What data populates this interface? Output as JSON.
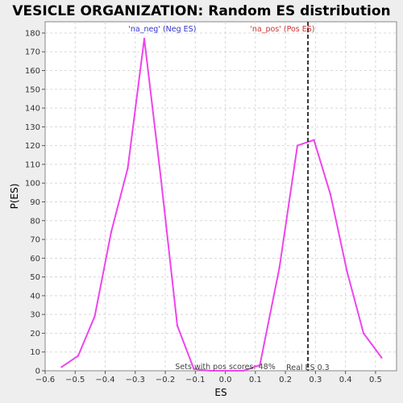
{
  "chart_data": {
    "type": "line",
    "title": "VESICLE ORGANIZATION: Random ES distribution",
    "xlabel": "ES",
    "ylabel": "P(ES)",
    "xlim": [
      -0.6,
      0.57
    ],
    "ylim": [
      0,
      186
    ],
    "xticks": [
      -0.6,
      -0.5,
      -0.4,
      -0.3,
      -0.2,
      -0.1,
      0.0,
      0.1,
      0.2,
      0.3,
      0.4,
      0.5
    ],
    "xtick_labels": [
      "−0.6",
      "−0.5",
      "−0.4",
      "−0.3",
      "−0.2",
      "−0.1",
      "0.0",
      "0.1",
      "0.2",
      "0.3",
      "0.4",
      "0.5"
    ],
    "yticks": [
      0,
      10,
      20,
      30,
      40,
      50,
      60,
      70,
      80,
      90,
      100,
      110,
      120,
      130,
      140,
      150,
      160,
      170,
      180
    ],
    "grid": true,
    "series": [
      {
        "color": "#ee44ee",
        "x": [
          -0.545,
          -0.49,
          -0.435,
          -0.38,
          -0.325,
          -0.27,
          -0.215,
          -0.16,
          -0.105,
          -0.05,
          0.005,
          0.06,
          0.115,
          0.18,
          0.24,
          0.295,
          0.35,
          0.405,
          0.46,
          0.52
        ],
        "y": [
          2,
          8,
          29,
          74,
          108,
          177,
          103,
          24,
          1,
          0,
          0,
          0,
          3,
          55,
          120,
          123,
          94,
          53,
          20,
          7
        ]
      }
    ],
    "vline": {
      "x": 0.275,
      "color": "#333333",
      "style": "dashed",
      "label": "Real ES 0.3"
    },
    "annotations": {
      "neg_label": "'na_neg' (Neg ES)",
      "pos_label": "'na_pos' (Pos ES)",
      "pos_scores": "Sets with pos scores: 48%"
    },
    "colors": {
      "neg": "#3333cc",
      "pos": "#cc3333",
      "line": "#ee44ee",
      "plot_bg": "#ffffff",
      "page_bg": "#eeeeee"
    }
  }
}
